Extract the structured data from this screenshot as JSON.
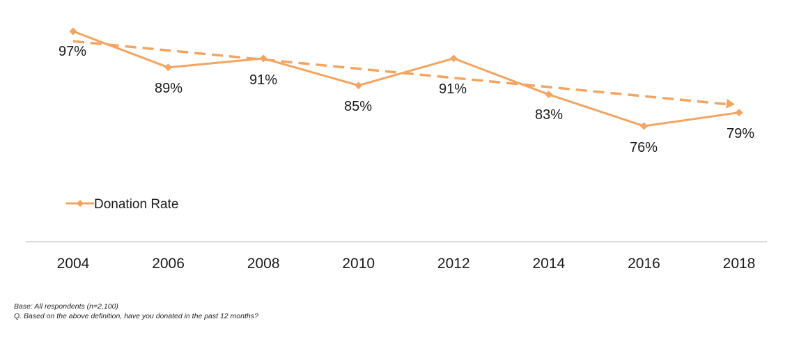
{
  "chart_data": {
    "type": "line",
    "categories": [
      "2004",
      "2006",
      "2008",
      "2010",
      "2012",
      "2014",
      "2016",
      "2018"
    ],
    "series": [
      {
        "name": "Donation Rate",
        "values": [
          97,
          89,
          91,
          85,
          91,
          83,
          76,
          79
        ],
        "labels": [
          "97%",
          "89%",
          "91%",
          "85%",
          "91%",
          "83%",
          "76%",
          "79%"
        ]
      }
    ],
    "trendline": {
      "style": "dashed-arrow",
      "start": 94.8,
      "end": 80.8
    },
    "ylim": [
      66,
      99.5
    ],
    "legend_position": "bottom-left",
    "grid": false,
    "color": "#F4A460"
  },
  "footnotes": {
    "base": "Base: All respondents (n=2,100)",
    "question": "Q. Based on the above definition, have you donated in the past 12 months?"
  }
}
